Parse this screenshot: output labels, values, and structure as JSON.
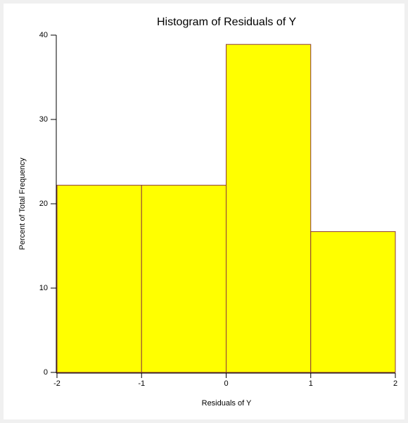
{
  "chart_data": {
    "type": "histogram",
    "title": "Histogram of Residuals of Y",
    "x_label": "Residuals of Y",
    "y_label": "Percent of Total Frequency",
    "bins": [
      -2,
      -1,
      0,
      1,
      2
    ],
    "values": [
      22.2,
      22.2,
      38.9,
      16.7
    ],
    "color": "#ffff00",
    "edge_color": "#8b3a3a",
    "xlim": [
      -2,
      2
    ],
    "xticks": [
      -2,
      -1,
      0,
      1,
      2
    ],
    "ylim": [
      0,
      40
    ],
    "yticks": [
      0,
      10,
      20,
      30,
      40
    ],
    "grid": false
  }
}
